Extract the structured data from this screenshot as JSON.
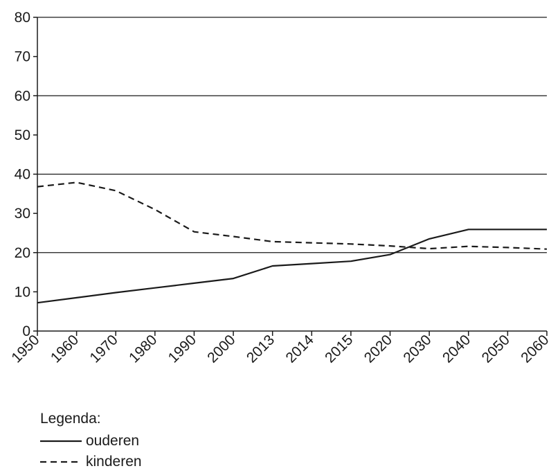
{
  "chart_data": {
    "type": "line",
    "categories": [
      "1950",
      "1960",
      "1970",
      "1980",
      "1990",
      "2000",
      "2013",
      "2014",
      "2015",
      "2020",
      "2030",
      "2040",
      "2050",
      "2060"
    ],
    "series": [
      {
        "name": "ouderen",
        "style": "solid",
        "values": [
          7.2,
          8.5,
          9.8,
          11.0,
          12.2,
          13.4,
          16.6,
          17.2,
          17.8,
          19.5,
          23.5,
          25.9,
          25.9,
          25.9
        ]
      },
      {
        "name": "kinderen",
        "style": "dashed",
        "values": [
          36.8,
          37.9,
          35.8,
          31.0,
          25.3,
          24.1,
          22.8,
          22.5,
          22.2,
          21.7,
          21.0,
          21.6,
          21.3,
          20.9
        ]
      }
    ],
    "ylim": [
      0,
      80
    ],
    "yticks": [
      0,
      10,
      20,
      30,
      40,
      50,
      60,
      70,
      80
    ],
    "gridlines": [
      20,
      40,
      60,
      80
    ],
    "line_color": "#1a1a1a",
    "legend_position": "bottom-left"
  },
  "legend": {
    "title": "Legenda:",
    "items": [
      {
        "label": "ouderen",
        "style": "solid"
      },
      {
        "label": "kinderen",
        "style": "dashed"
      }
    ]
  }
}
